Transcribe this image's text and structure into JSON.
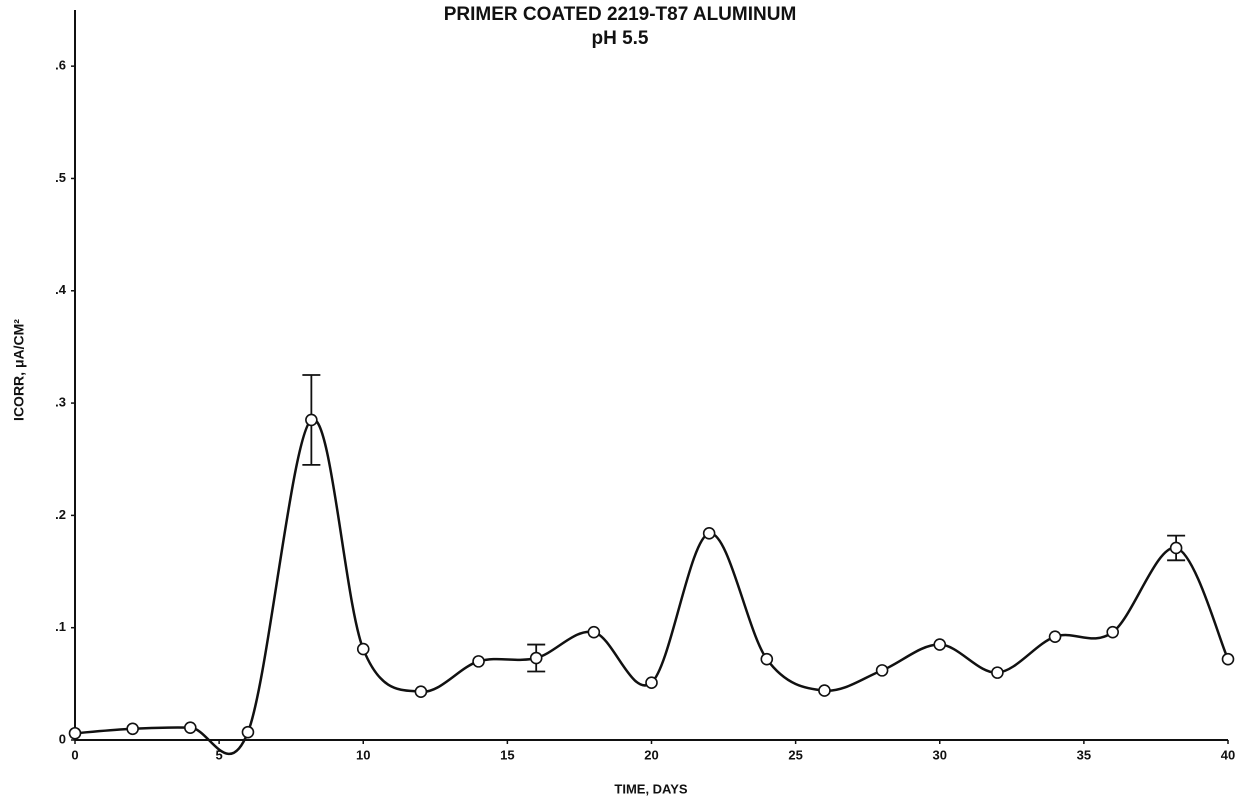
{
  "chart_data": {
    "type": "line",
    "title": "PRIMER COATED 2219-T87 ALUMINUM",
    "subtitle": "pH 5.5",
    "x_label": "TIME, DAYS",
    "y_label": "ICORR, μA/CM²",
    "x": [
      0,
      2,
      4,
      6,
      8.2,
      10,
      12,
      14,
      16,
      18,
      20,
      22,
      24,
      26,
      28,
      30,
      32,
      34,
      36,
      38.2,
      40
    ],
    "series": [
      {
        "name": "ICORR",
        "color": "#111111",
        "values": [
          0.006,
          0.01,
          0.011,
          0.007,
          0.285,
          0.081,
          0.043,
          0.07,
          0.073,
          0.096,
          0.051,
          0.184,
          0.072,
          0.044,
          0.062,
          0.085,
          0.06,
          0.092,
          0.096,
          0.171,
          0.072
        ],
        "errors": [
          null,
          null,
          null,
          null,
          0.04,
          null,
          null,
          null,
          0.012,
          null,
          null,
          null,
          null,
          null,
          null,
          null,
          null,
          null,
          null,
          0.011,
          null
        ]
      }
    ],
    "xlim": [
      0,
      40
    ],
    "xticks": [
      0,
      5,
      10,
      15,
      20,
      25,
      30,
      35,
      40
    ],
    "ylim": [
      0,
      0.65
    ],
    "yticks": [
      0,
      {
        "value": 0.1,
        "label": ".1"
      },
      {
        "value": 0.2,
        "label": ".2"
      },
      {
        "value": 0.3,
        "label": ".3"
      },
      {
        "value": 0.4,
        "label": ".4"
      },
      {
        "value": 0.5,
        "label": ".5"
      },
      {
        "value": 0.6,
        "label": ".6"
      }
    ],
    "grid": false
  }
}
